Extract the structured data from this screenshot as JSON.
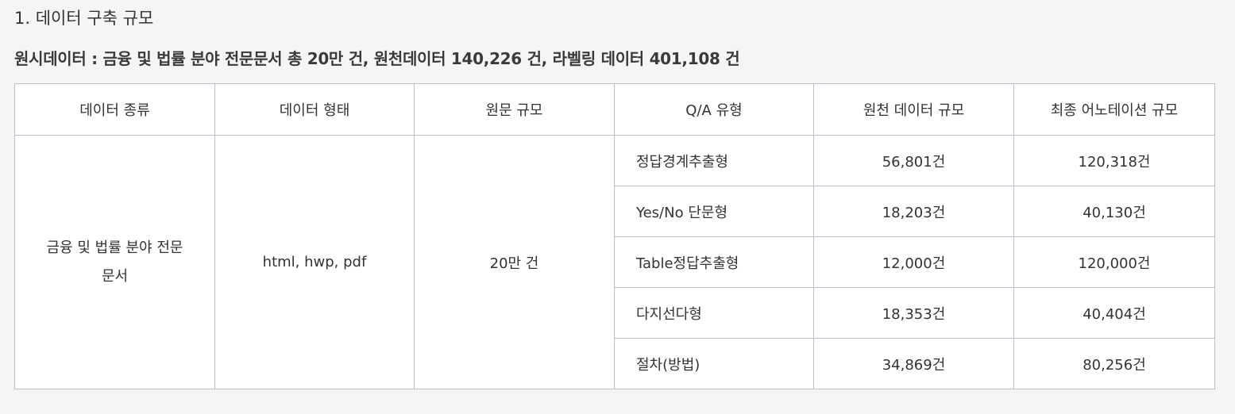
{
  "section": {
    "title": "1. 데이터 구축 규모"
  },
  "summary": {
    "text": "원시데이터 : 금융 및 법률 분야 전문문서 총 20만 건, 원천데이터 140,226 건, 라벨링 데이터 401,108 건"
  },
  "table": {
    "headers": [
      "데이터 종류",
      "데이터 형태",
      "원문 규모",
      "Q/A 유형",
      "원천 데이터 규모",
      "최종 어노테이션 규모"
    ],
    "data_type_lines": [
      "금융 및 법률 분야 전문",
      "문서"
    ],
    "data_format": "html, hwp, pdf",
    "source_scale": "20만 건",
    "rows": [
      {
        "qa_type": "정답경계추출형",
        "source_count": "56,801건",
        "annotation_count": "120,318건"
      },
      {
        "qa_type": "Yes/No 단문형",
        "source_count": "18,203건",
        "annotation_count": "40,130건"
      },
      {
        "qa_type": "Table정답추출형",
        "source_count": "12,000건",
        "annotation_count": "120,000건"
      },
      {
        "qa_type": "다지선다형",
        "source_count": "18,353건",
        "annotation_count": "40,404건"
      },
      {
        "qa_type": "절차(방법)",
        "source_count": "34,869건",
        "annotation_count": "80,256건"
      }
    ]
  }
}
